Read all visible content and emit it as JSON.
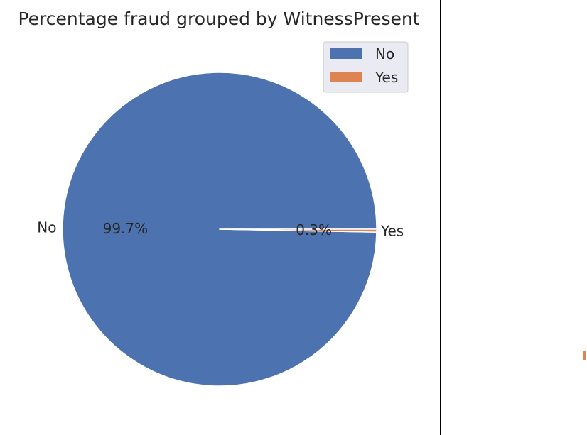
{
  "chart_data": {
    "type": "pie",
    "title": "Percentage fraud grouped by WitnessPresent",
    "categories": [
      "No",
      "Yes"
    ],
    "values": [
      99.7,
      0.3
    ],
    "percent_labels": [
      "99.7%",
      "0.3%"
    ],
    "colors": [
      "#4c72b0",
      "#dd8452"
    ],
    "legend": {
      "position": "top-right",
      "entries": [
        "No",
        "Yes"
      ]
    }
  },
  "colors": {
    "right_panel_fragment": "#dd8452",
    "divider": "#000000"
  }
}
